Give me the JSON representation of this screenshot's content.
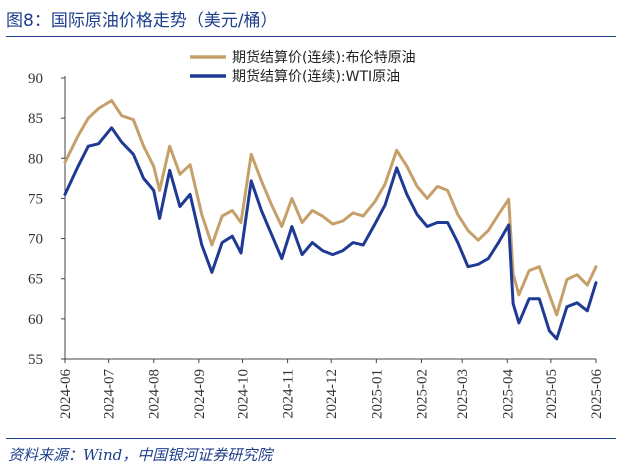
{
  "title": "图8：国际原油价格走势（美元/桶）",
  "source": "资料来源：Wind，中国银河证券研究院",
  "colors": {
    "brent": "#c6a06a",
    "wti": "#1f3a93",
    "frame": "#1e3f8c",
    "axis": "#444444"
  },
  "chart_data": {
    "type": "line",
    "title": "图8：国际原油价格走势（美元/桶）",
    "xlabel": "",
    "ylabel": "",
    "ylim": [
      55,
      90
    ],
    "yticks": [
      "55",
      "60",
      "65",
      "70",
      "75",
      "80",
      "85",
      "90"
    ],
    "xlim": [
      "2024-06-01",
      "2025-06-01"
    ],
    "xticks": [
      "2024-06",
      "2024-07",
      "2024-08",
      "2024-09",
      "2024-10",
      "2024-11",
      "2024-12",
      "2025-01",
      "2025-02",
      "2025-03",
      "2025-04",
      "2025-05",
      "2025-06"
    ],
    "grid": false,
    "legend_position": "top-center",
    "series": [
      {
        "name": "期货结算价(连续):布伦特原油",
        "color": "#c6a06a",
        "points": [
          [
            "2024-06-01",
            79.5
          ],
          [
            "2024-06-10",
            82.8
          ],
          [
            "2024-06-17",
            85.0
          ],
          [
            "2024-06-24",
            86.2
          ],
          [
            "2024-07-03",
            87.2
          ],
          [
            "2024-07-10",
            85.3
          ],
          [
            "2024-07-18",
            84.8
          ],
          [
            "2024-07-25",
            81.5
          ],
          [
            "2024-08-01",
            79.0
          ],
          [
            "2024-08-05",
            76.0
          ],
          [
            "2024-08-12",
            81.5
          ],
          [
            "2024-08-19",
            78.0
          ],
          [
            "2024-08-26",
            79.2
          ],
          [
            "2024-09-03",
            73.0
          ],
          [
            "2024-09-10",
            69.2
          ],
          [
            "2024-09-17",
            72.8
          ],
          [
            "2024-09-24",
            73.5
          ],
          [
            "2024-09-30",
            72.0
          ],
          [
            "2024-10-07",
            80.5
          ],
          [
            "2024-10-14",
            77.2
          ],
          [
            "2024-10-21",
            74.2
          ],
          [
            "2024-10-28",
            71.5
          ],
          [
            "2024-11-04",
            75.0
          ],
          [
            "2024-11-11",
            72.0
          ],
          [
            "2024-11-18",
            73.5
          ],
          [
            "2024-11-25",
            72.8
          ],
          [
            "2024-12-02",
            71.8
          ],
          [
            "2024-12-09",
            72.2
          ],
          [
            "2024-12-16",
            73.2
          ],
          [
            "2024-12-23",
            72.8
          ],
          [
            "2024-12-31",
            74.6
          ],
          [
            "2025-01-07",
            76.8
          ],
          [
            "2025-01-15",
            81.0
          ],
          [
            "2025-01-22",
            79.0
          ],
          [
            "2025-01-29",
            76.5
          ],
          [
            "2025-02-05",
            75.0
          ],
          [
            "2025-02-12",
            76.5
          ],
          [
            "2025-02-19",
            76.0
          ],
          [
            "2025-02-26",
            73.0
          ],
          [
            "2025-03-05",
            71.0
          ],
          [
            "2025-03-12",
            69.8
          ],
          [
            "2025-03-19",
            71.0
          ],
          [
            "2025-03-26",
            73.0
          ],
          [
            "2025-04-02",
            74.9
          ],
          [
            "2025-04-05",
            65.6
          ],
          [
            "2025-04-09",
            63.0
          ],
          [
            "2025-04-16",
            66.0
          ],
          [
            "2025-04-23",
            66.5
          ],
          [
            "2025-04-30",
            63.0
          ],
          [
            "2025-05-05",
            60.5
          ],
          [
            "2025-05-12",
            64.9
          ],
          [
            "2025-05-19",
            65.5
          ],
          [
            "2025-05-26",
            64.2
          ],
          [
            "2025-06-01",
            66.5
          ]
        ]
      },
      {
        "name": "期货结算价(连续):WTI原油",
        "color": "#1f3a93",
        "points": [
          [
            "2024-06-01",
            75.5
          ],
          [
            "2024-06-10",
            79.0
          ],
          [
            "2024-06-17",
            81.5
          ],
          [
            "2024-06-24",
            81.8
          ],
          [
            "2024-07-03",
            83.8
          ],
          [
            "2024-07-10",
            82.0
          ],
          [
            "2024-07-18",
            80.5
          ],
          [
            "2024-07-25",
            77.5
          ],
          [
            "2024-08-01",
            76.0
          ],
          [
            "2024-08-05",
            72.5
          ],
          [
            "2024-08-12",
            78.5
          ],
          [
            "2024-08-19",
            74.0
          ],
          [
            "2024-08-26",
            75.5
          ],
          [
            "2024-09-03",
            69.2
          ],
          [
            "2024-09-10",
            65.8
          ],
          [
            "2024-09-17",
            69.5
          ],
          [
            "2024-09-24",
            70.3
          ],
          [
            "2024-09-30",
            68.2
          ],
          [
            "2024-10-07",
            77.2
          ],
          [
            "2024-10-14",
            73.5
          ],
          [
            "2024-10-21",
            70.5
          ],
          [
            "2024-10-28",
            67.5
          ],
          [
            "2024-11-04",
            71.5
          ],
          [
            "2024-11-11",
            68.0
          ],
          [
            "2024-11-18",
            69.5
          ],
          [
            "2024-11-25",
            68.5
          ],
          [
            "2024-12-02",
            68.0
          ],
          [
            "2024-12-09",
            68.5
          ],
          [
            "2024-12-16",
            69.5
          ],
          [
            "2024-12-23",
            69.2
          ],
          [
            "2024-12-31",
            71.8
          ],
          [
            "2025-01-07",
            74.2
          ],
          [
            "2025-01-15",
            78.8
          ],
          [
            "2025-01-22",
            75.5
          ],
          [
            "2025-01-29",
            73.0
          ],
          [
            "2025-02-05",
            71.5
          ],
          [
            "2025-02-12",
            72.0
          ],
          [
            "2025-02-19",
            72.0
          ],
          [
            "2025-02-26",
            69.5
          ],
          [
            "2025-03-05",
            66.5
          ],
          [
            "2025-03-12",
            66.8
          ],
          [
            "2025-03-19",
            67.5
          ],
          [
            "2025-03-26",
            69.5
          ],
          [
            "2025-04-02",
            71.7
          ],
          [
            "2025-04-05",
            61.9
          ],
          [
            "2025-04-09",
            59.5
          ],
          [
            "2025-04-16",
            62.5
          ],
          [
            "2025-04-23",
            62.5
          ],
          [
            "2025-04-30",
            58.5
          ],
          [
            "2025-05-05",
            57.5
          ],
          [
            "2025-05-12",
            61.5
          ],
          [
            "2025-05-19",
            62.0
          ],
          [
            "2025-05-26",
            61.0
          ],
          [
            "2025-06-01",
            64.5
          ]
        ]
      }
    ]
  }
}
